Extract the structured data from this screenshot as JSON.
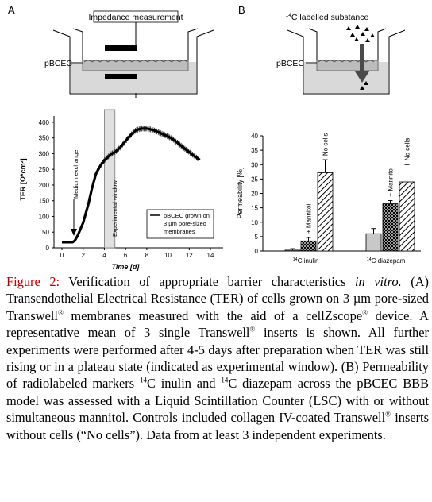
{
  "panel_a": {
    "letter": "A",
    "diagram": {
      "title": "Impedance measurement",
      "cell_label": "pBCEC"
    },
    "chart": {
      "ylabel": "TER [Ω*cm²]",
      "xlabel": "Time [d]",
      "yticks": [
        "0",
        "50",
        "100",
        "150",
        "200",
        "250",
        "300",
        "350",
        "400"
      ],
      "xticks": [
        "0",
        "2",
        "4",
        "6",
        "8",
        "10",
        "12",
        "14"
      ],
      "annotation_medium": "Medium exchange",
      "annotation_window": "Experimental window",
      "legend": [
        "pBCEC grown on",
        "3 µm pore-sized",
        "membranes"
      ]
    }
  },
  "panel_b": {
    "letter": "B",
    "diagram": {
      "title_sup": "14",
      "title": "C labelled substance",
      "cell_label": "pBCEC"
    },
    "chart": {
      "ylabel": "Permeability [%]",
      "yticks": [
        "0",
        "5",
        "10",
        "15",
        "20",
        "25",
        "30",
        "35",
        "40"
      ],
      "group_labels": [
        {
          "sup": "14",
          "text": "C inulin"
        },
        {
          "sup": "14",
          "text": "C diazepam"
        }
      ],
      "bar_labels": [
        "+ Mannitol",
        "No cells",
        "+ Mannitol",
        "No cells"
      ]
    }
  },
  "chart_data": [
    {
      "type": "line",
      "title": "",
      "xlabel": "Time [d]",
      "ylabel": "TER [Ω*cm²]",
      "xlim": [
        0,
        14
      ],
      "ylim": [
        0,
        420
      ],
      "x": [
        0,
        0.5,
        1.0,
        1.2,
        1.5,
        2.0,
        2.5,
        2.8,
        3.0,
        3.2,
        3.5,
        3.8,
        4.0,
        4.3,
        4.6,
        5.0,
        5.5,
        6.0,
        6.5,
        7.0,
        7.5,
        8.0,
        8.5,
        9.0,
        9.5,
        10.0,
        10.5,
        11.0,
        11.5,
        12.0,
        12.5,
        13.0
      ],
      "series": [
        {
          "name": "pBCEC grown on 3 µm pore-sized membranes",
          "values": [
            18,
            18,
            18,
            22,
            40,
            80,
            140,
            185,
            210,
            235,
            255,
            270,
            278,
            288,
            298,
            305,
            320,
            340,
            360,
            375,
            380,
            380,
            376,
            370,
            362,
            355,
            345,
            332,
            318,
            305,
            292,
            280
          ]
        }
      ],
      "shaded_region": {
        "label": "Experimental window",
        "x": [
          4,
          5
        ]
      },
      "annotations": [
        {
          "text": "Medium exchange",
          "x": 1
        }
      ],
      "grid": false,
      "legend_position": "bottom-right"
    },
    {
      "type": "bar",
      "title": "",
      "ylabel": "Permeability [%]",
      "ylim": [
        0,
        40
      ],
      "groups": [
        "14C inulin",
        "14C diazepam"
      ],
      "bars": [
        {
          "group": "14C inulin",
          "label": "",
          "value": 0.3,
          "error": 0.5,
          "fill": "gray"
        },
        {
          "group": "14C inulin",
          "label": "+ Mannitol",
          "value": 3.5,
          "error": 1.2,
          "fill": "cross-hatch"
        },
        {
          "group": "14C inulin",
          "label": "No cells",
          "value": 27.2,
          "error": 4.5,
          "fill": "diagonal-hatch"
        },
        {
          "group": "14C diazepam",
          "label": "",
          "value": 6.0,
          "error": 1.8,
          "fill": "gray"
        },
        {
          "group": "14C diazepam",
          "label": "+ Mannitol",
          "value": 16.4,
          "error": 1.1,
          "fill": "cross-hatch"
        },
        {
          "group": "14C diazepam",
          "label": "No cells",
          "value": 24.0,
          "error": 6.0,
          "fill": "diagonal-hatch"
        }
      ]
    }
  ],
  "caption": {
    "label": "Figure 2:",
    "title_text": " Verification of appropriate barrier characteristics ",
    "title_italic": "in vitro.",
    "a_1": " (A) Transendothelial Electrical Resistance (TER) of cells grown on 3 µm pore-sized Transwell",
    "a_2": " membranes measured with the aid of a cellZscope",
    "a_3": " device. A representative mean of 3 single Transwell",
    "a_4": " inserts is shown. All further experiments were performed after 4-5 days after preparation when TER was still rising or in a plateau state (indicated as experimental window). (B) Permeability of radiolabeled markers ",
    "sup14": "14",
    "a_5": "C inulin and ",
    "a_6": "C diazepam across the pBCEC BBB model was assessed with a Liquid Scintillation Counter (LSC) with or without simultaneous mannitol. Controls included collagen IV-coated Transwell",
    "a_7": " inserts without cells (“No cells”). Data from at least 3 independent experiments.",
    "reg": "®"
  }
}
